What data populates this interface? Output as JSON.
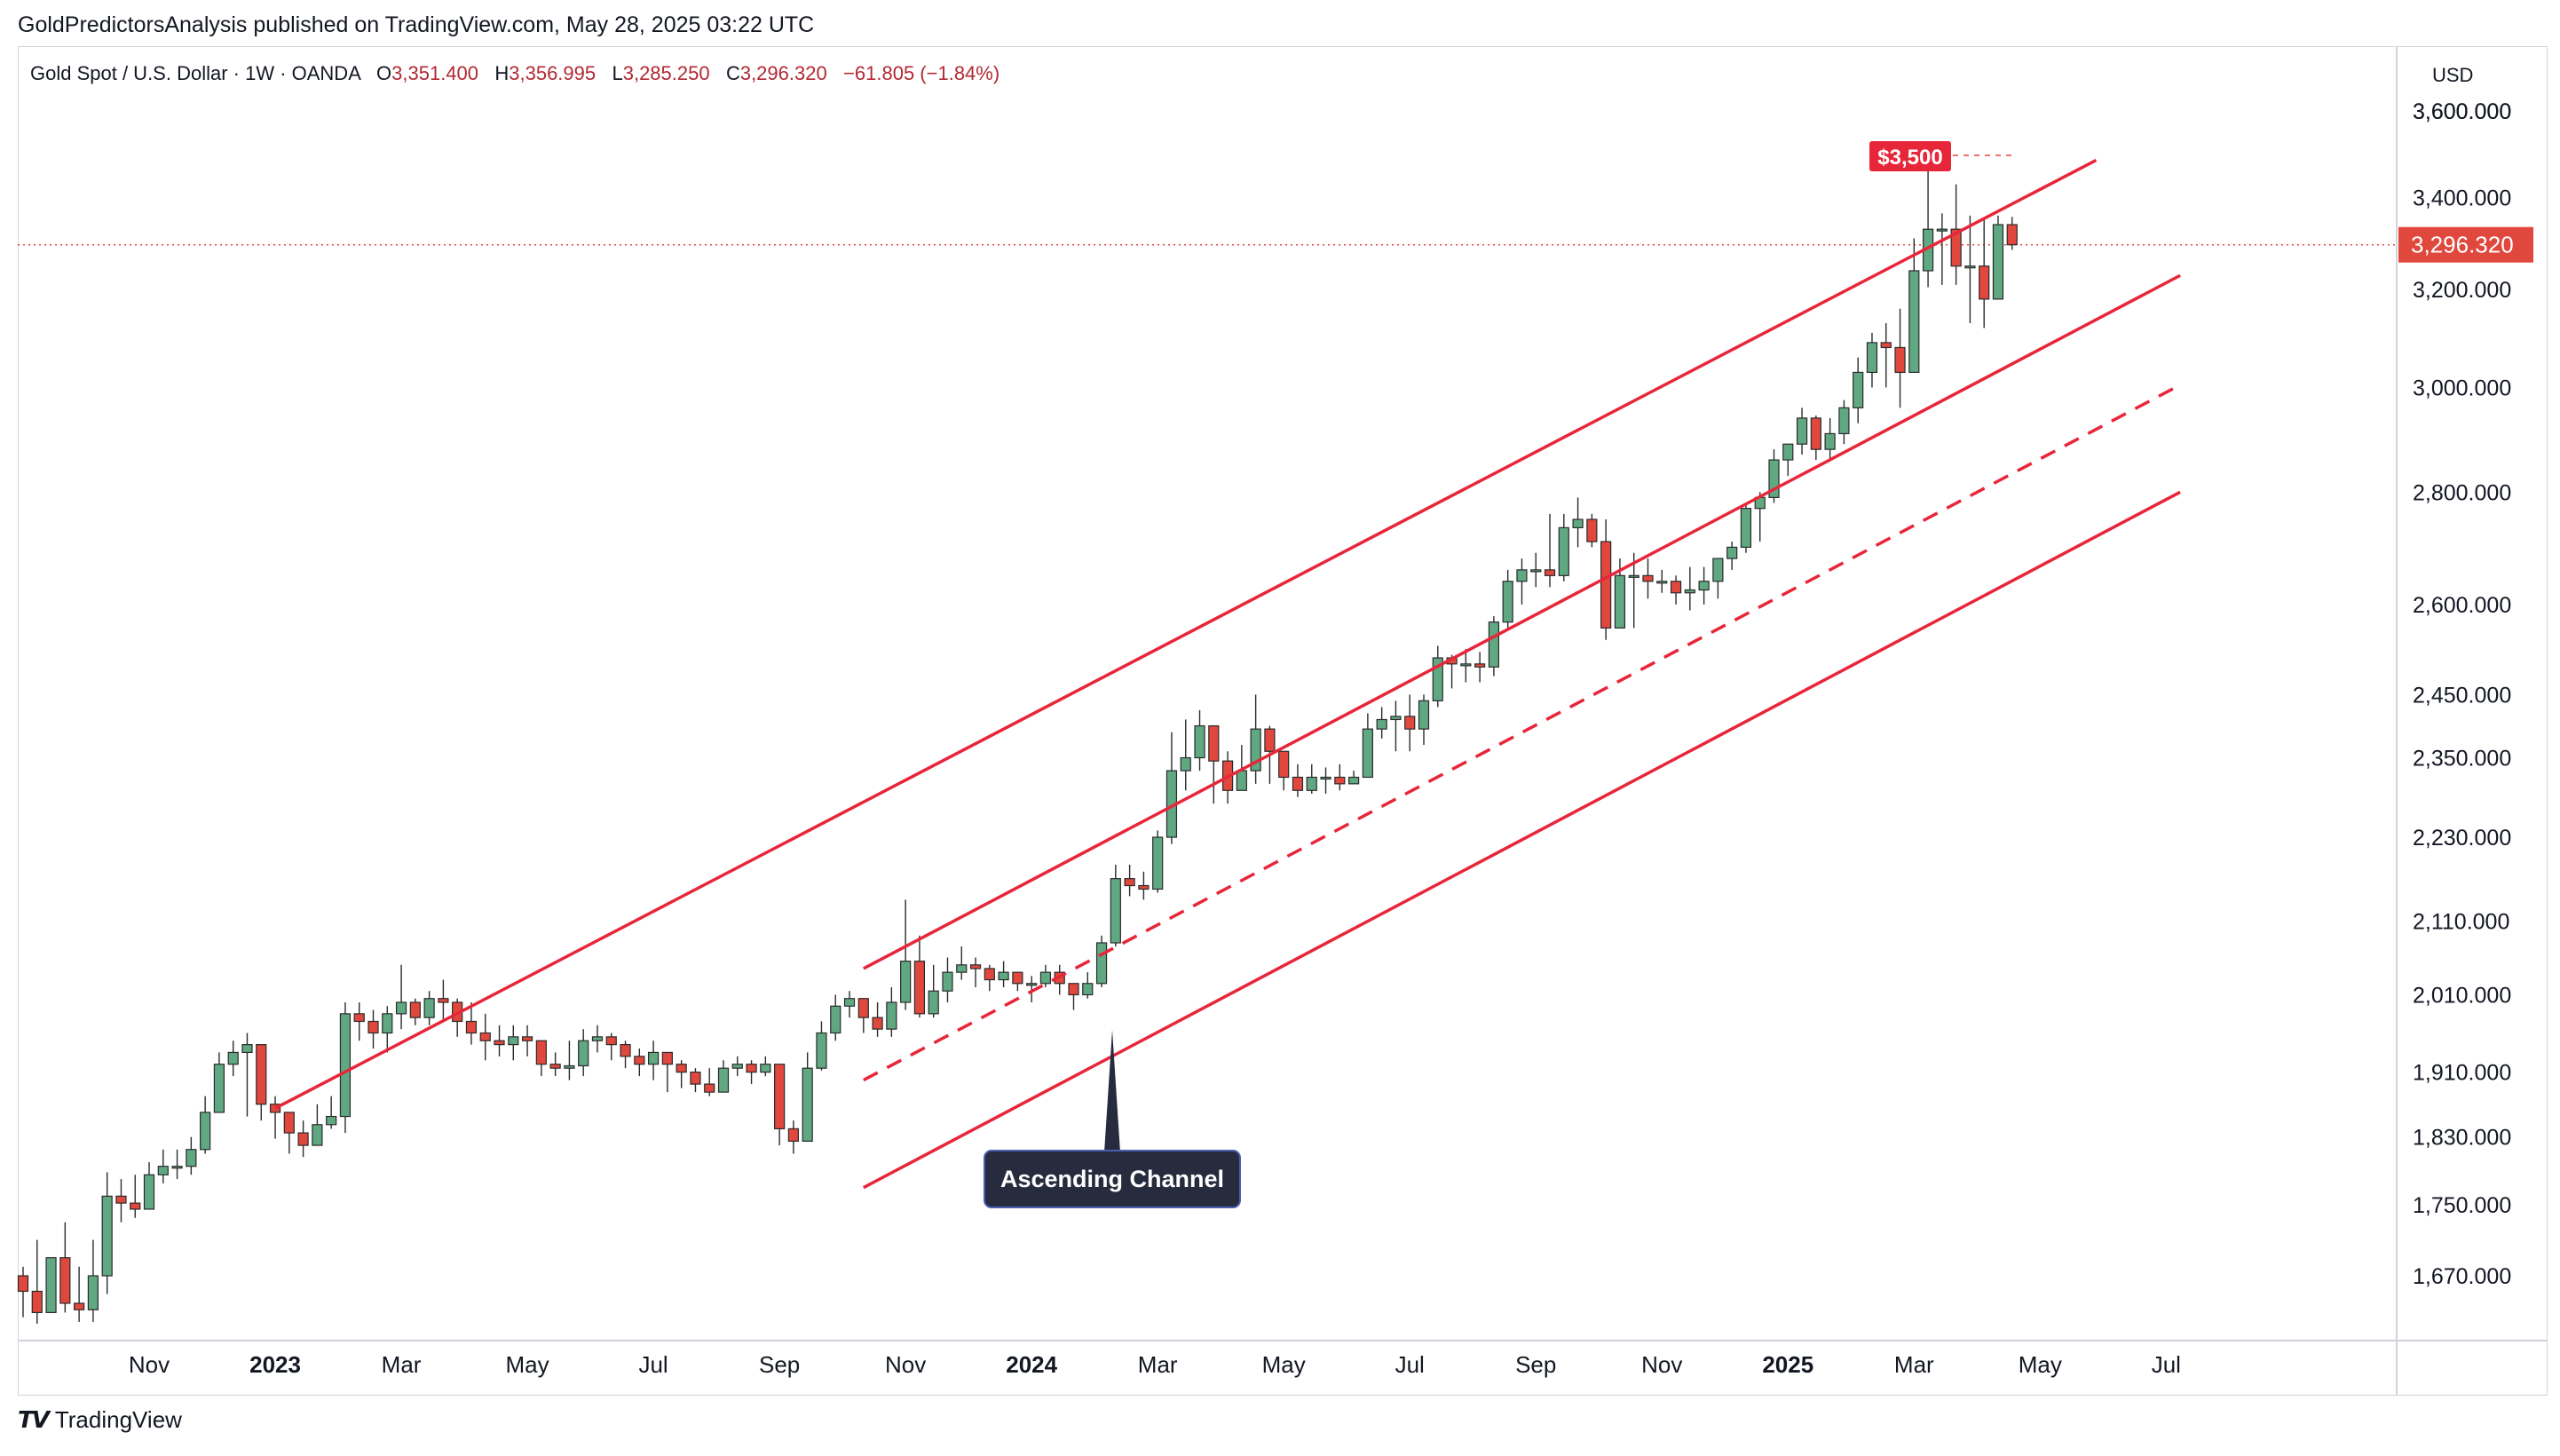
{
  "header": {
    "publisher": "GoldPredictorsAnalysis published on TradingView.com, May 28, 2025 03:22 UTC"
  },
  "symbol": {
    "name": "Gold Spot / U.S. Dollar · 1W · OANDA",
    "open_label": "O",
    "open": "3,351.400",
    "high_label": "H",
    "high": "3,356.995",
    "low_label": "L",
    "low": "3,285.250",
    "close_label": "C",
    "close": "3,296.320",
    "change": "−61.805 (−1.84%)"
  },
  "price_axis": {
    "currency": "USD"
  },
  "footer": {
    "brand": "TradingView"
  },
  "colors": {
    "up": "#5fa882",
    "down": "#e0483e",
    "channel": "#e8263a",
    "annotation_bg": "#262b3e",
    "label_bg": "#e8263a"
  },
  "chart_data": {
    "type": "candlestick",
    "title": "Gold Spot / U.S. Dollar · 1W · OANDA",
    "y_scale": "log",
    "ylim": [
      1590,
      3760
    ],
    "y_ticks": [
      "3,600.000",
      "3,400.000",
      "3,200.000",
      "3,000.000",
      "2,800.000",
      "2,600.000",
      "2,450.000",
      "2,350.000",
      "2,230.000",
      "2,110.000",
      "2,010.000",
      "1,910.000",
      "1,830.000",
      "1,750.000",
      "1,670.000"
    ],
    "x_ticks": [
      {
        "label": "Nov",
        "bar": 9
      },
      {
        "label": "2023",
        "bar": 18,
        "year": true
      },
      {
        "label": "Mar",
        "bar": 27
      },
      {
        "label": "May",
        "bar": 36
      },
      {
        "label": "Jul",
        "bar": 45
      },
      {
        "label": "Sep",
        "bar": 54
      },
      {
        "label": "Nov",
        "bar": 63
      },
      {
        "label": "2024",
        "bar": 72,
        "year": true
      },
      {
        "label": "Mar",
        "bar": 81
      },
      {
        "label": "May",
        "bar": 90
      },
      {
        "label": "Jul",
        "bar": 99
      },
      {
        "label": "Sep",
        "bar": 108
      },
      {
        "label": "Nov",
        "bar": 117
      },
      {
        "label": "2025",
        "bar": 126,
        "year": true
      },
      {
        "label": "Mar",
        "bar": 135
      },
      {
        "label": "May",
        "bar": 144
      },
      {
        "label": "Jul",
        "bar": 153
      }
    ],
    "weekly_closes": [
      1653,
      1630,
      1690,
      1640,
      1633,
      1670,
      1760,
      1752,
      1745,
      1785,
      1795,
      1795,
      1815,
      1860,
      1920,
      1935,
      1945,
      1870,
      1860,
      1835,
      1820,
      1845,
      1855,
      1985,
      1975,
      1960,
      1985,
      2000,
      1980,
      2005,
      2000,
      1975,
      1960,
      1950,
      1945,
      1955,
      1950,
      1920,
      1915,
      1918,
      1950,
      1955,
      1945,
      1930,
      1920,
      1935,
      1920,
      1910,
      1895,
      1885,
      1915,
      1920,
      1910,
      1920,
      1840,
      1825,
      1915,
      1960,
      1995,
      2005,
      1980,
      1965,
      2000,
      2055,
      1985,
      2015,
      2040,
      2050,
      2045,
      2030,
      2040,
      2025,
      2025,
      2040,
      2025,
      2010,
      2025,
      2080,
      2170,
      2160,
      2155,
      2230,
      2330,
      2350,
      2400,
      2345,
      2300,
      2330,
      2395,
      2360,
      2320,
      2300,
      2320,
      2320,
      2310,
      2320,
      2395,
      2410,
      2415,
      2395,
      2440,
      2510,
      2500,
      2500,
      2495,
      2570,
      2640,
      2660,
      2660,
      2650,
      2735,
      2750,
      2710,
      2560,
      2650,
      2650,
      2640,
      2640,
      2620,
      2625,
      2640,
      2680,
      2700,
      2770,
      2790,
      2860,
      2890,
      2940,
      2880,
      2910,
      2960,
      3030,
      3090,
      3080,
      3030,
      3240,
      3330,
      3330,
      3250,
      3250,
      3180,
      3340,
      3296
    ],
    "weekly_highs": [
      1680,
      1710,
      1690,
      1730,
      1680,
      1710,
      1788,
      1780,
      1785,
      1800,
      1815,
      1815,
      1830,
      1880,
      1935,
      1950,
      1960,
      1880,
      1880,
      1860,
      1850,
      1870,
      1880,
      2000,
      2000,
      1990,
      1995,
      2050,
      2005,
      2015,
      2030,
      2005,
      2000,
      1985,
      1970,
      1970,
      1970,
      1950,
      1935,
      1950,
      1965,
      1970,
      1960,
      1950,
      1940,
      1950,
      1930,
      1925,
      1915,
      1915,
      1925,
      1930,
      1925,
      1930,
      1920,
      1850,
      1935,
      1975,
      2010,
      2015,
      2005,
      2000,
      2020,
      2140,
      2090,
      2050,
      2060,
      2075,
      2060,
      2050,
      2055,
      2035,
      2035,
      2050,
      2050,
      2025,
      2040,
      2090,
      2190,
      2190,
      2180,
      2240,
      2390,
      2410,
      2425,
      2400,
      2360,
      2370,
      2450,
      2400,
      2360,
      2340,
      2340,
      2335,
      2340,
      2330,
      2420,
      2430,
      2440,
      2450,
      2450,
      2530,
      2515,
      2525,
      2520,
      2580,
      2660,
      2680,
      2690,
      2760,
      2760,
      2790,
      2760,
      2750,
      2680,
      2690,
      2680,
      2660,
      2650,
      2665,
      2665,
      2680,
      2710,
      2780,
      2800,
      2880,
      2890,
      2960,
      2945,
      2940,
      2975,
      3060,
      3110,
      3130,
      3160,
      3310,
      3500,
      3365,
      3430,
      3360,
      3355,
      3360,
      3357
    ],
    "weekly_lows": [
      1625,
      1618,
      1635,
      1630,
      1620,
      1620,
      1650,
      1730,
      1735,
      1750,
      1775,
      1780,
      1785,
      1810,
      1860,
      1905,
      1855,
      1850,
      1828,
      1810,
      1806,
      1820,
      1840,
      1835,
      1950,
      1940,
      1935,
      1965,
      1970,
      1970,
      1975,
      1955,
      1945,
      1925,
      1930,
      1925,
      1930,
      1905,
      1905,
      1900,
      1905,
      1935,
      1925,
      1915,
      1905,
      1900,
      1885,
      1890,
      1885,
      1880,
      1885,
      1905,
      1895,
      1905,
      1820,
      1810,
      1825,
      1912,
      1950,
      1980,
      1960,
      1955,
      1955,
      1990,
      1980,
      1980,
      2000,
      2030,
      2020,
      2015,
      2020,
      2015,
      2000,
      2020,
      2010,
      1990,
      2005,
      2020,
      2075,
      2145,
      2140,
      2150,
      2220,
      2300,
      2330,
      2280,
      2280,
      2300,
      2310,
      2310,
      2300,
      2290,
      2295,
      2295,
      2300,
      2310,
      2320,
      2380,
      2360,
      2360,
      2370,
      2430,
      2460,
      2470,
      2470,
      2480,
      2560,
      2600,
      2630,
      2630,
      2640,
      2700,
      2700,
      2540,
      2560,
      2560,
      2610,
      2620,
      2600,
      2590,
      2600,
      2610,
      2660,
      2690,
      2710,
      2780,
      2830,
      2870,
      2860,
      2860,
      2890,
      2930,
      3000,
      3000,
      2960,
      3030,
      3205,
      3210,
      3210,
      3130,
      3120,
      3180,
      3285
    ],
    "channels": [
      {
        "name": "upper",
        "from": {
          "bar": 18,
          "price": 1865
        },
        "to": {
          "bar": 148,
          "price": 3485
        },
        "dashed": false
      },
      {
        "name": "middle",
        "from": {
          "bar": 60,
          "price": 2045
        },
        "to": {
          "bar": 154,
          "price": 3230
        },
        "dashed": false
      },
      {
        "name": "center",
        "from": {
          "bar": 60,
          "price": 1900
        },
        "to": {
          "bar": 154,
          "price": 3005
        },
        "dashed": true
      },
      {
        "name": "lower",
        "from": {
          "bar": 60,
          "price": 1770
        },
        "to": {
          "bar": 154,
          "price": 2800
        },
        "dashed": false
      }
    ],
    "annotations": [
      {
        "text": "Ascending Channel",
        "bar": 79,
        "price": 1755
      },
      {
        "text": "$3,500",
        "bar": 142,
        "price": 3500
      }
    ],
    "last_price_label": "3,296.320"
  }
}
